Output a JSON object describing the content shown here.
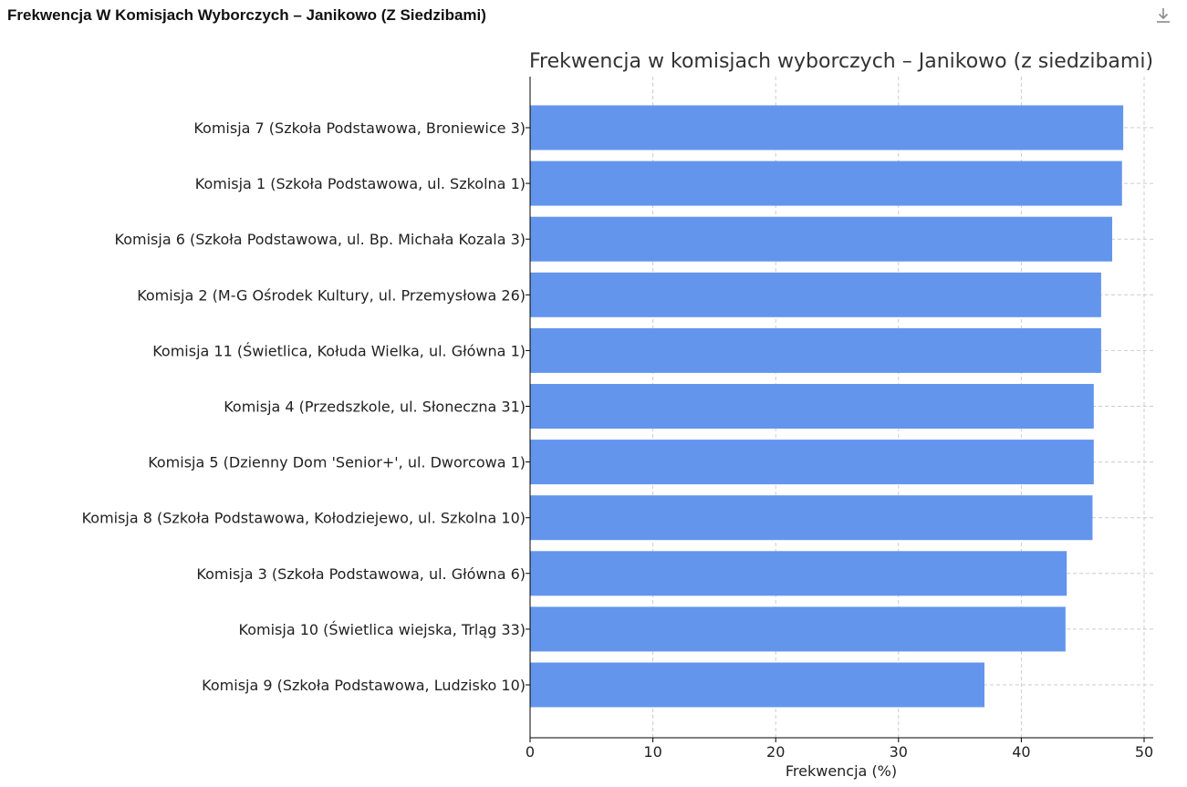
{
  "header": {
    "title": "Frekwencja W Komisjach Wyborczych – Janikowo (Z Siedzibami)",
    "download_icon": "download-icon"
  },
  "chart_data": {
    "type": "bar",
    "orientation": "horizontal",
    "title": "Frekwencja w komisjach wyborczych – Janikowo (z siedzibami)",
    "xlabel": "Frekwencja (%)",
    "ylabel": "",
    "xlim": [
      0,
      50
    ],
    "xticks": [
      0,
      10,
      20,
      30,
      40,
      50
    ],
    "grid": true,
    "bar_color": "#6495ED",
    "categories": [
      "Komisja 7 (Szkoła Podstawowa, Broniewice 3)",
      "Komisja 1 (Szkoła Podstawowa, ul. Szkolna 1)",
      "Komisja 6 (Szkoła Podstawowa, ul. Bp. Michała Kozala 3)",
      "Komisja 2 (M-G Ośrodek Kultury, ul. Przemysłowa 26)",
      "Komisja 11 (Świetlica, Kołuda Wielka, ul. Główna 1)",
      "Komisja 4 (Przedszkole, ul. Słoneczna 31)",
      "Komisja 5 (Dzienny Dom 'Senior+', ul. Dworcowa 1)",
      "Komisja 8 (Szkoła Podstawowa, Kołodziejewo, ul. Szkolna 10)",
      "Komisja 3 (Szkoła Podstawowa, ul. Główna 6)",
      "Komisja 10 (Świetlica wiejska, Trląg 33)",
      "Komisja 9 (Szkoła Podstawowa, Ludzisko 10)"
    ],
    "values": [
      48.3,
      48.2,
      47.4,
      46.5,
      46.5,
      45.9,
      45.9,
      45.8,
      43.7,
      43.6,
      37.0
    ]
  }
}
